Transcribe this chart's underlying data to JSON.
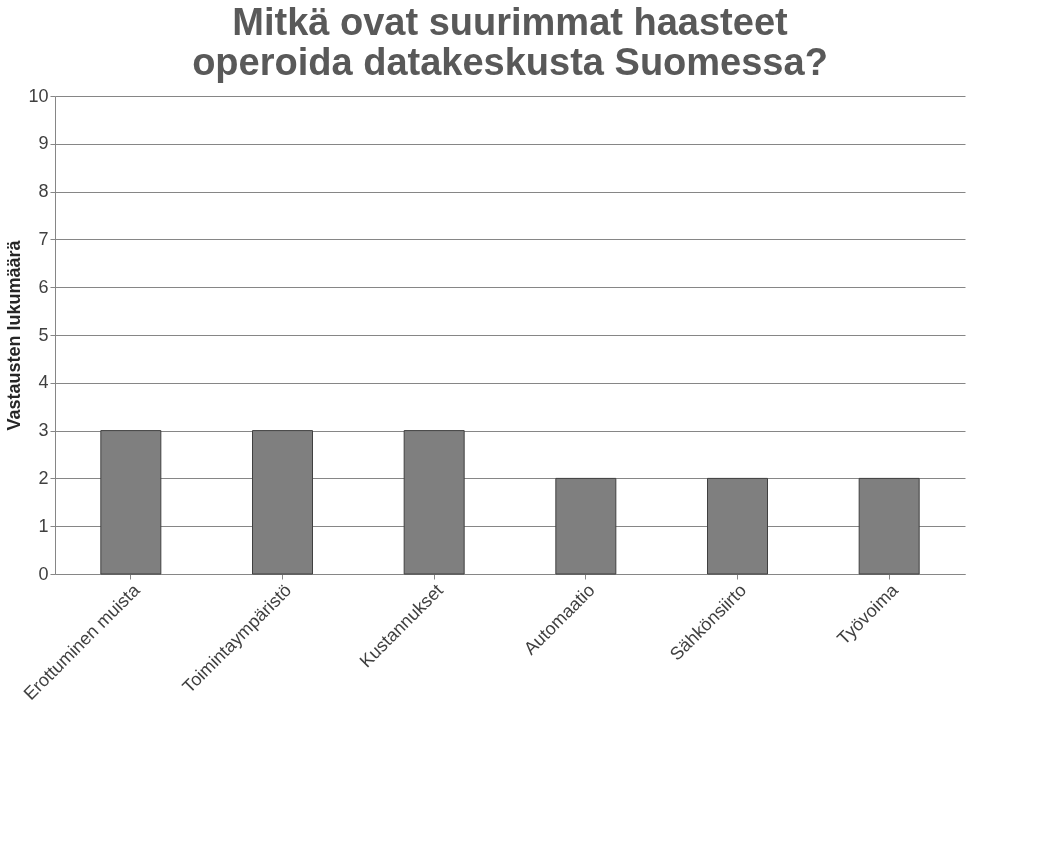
{
  "chart_data": {
    "type": "bar",
    "title": [
      "Mitkä ovat suurimmat haasteet",
      "operoida datakeskusta Suomessa?"
    ],
    "ylabel": "Vastausten lukumäärä",
    "categories": [
      "Erottuminen muista",
      "Toimintaympäristö",
      "Kustannukset",
      "Automaatio",
      "Sähkönsiirto",
      "Työvoima"
    ],
    "values": [
      3,
      3,
      3,
      2,
      2,
      2
    ],
    "color": "#7f7f7f",
    "ylim": [
      0,
      10
    ],
    "yticks": [
      0,
      1,
      2,
      3,
      4,
      5,
      6,
      7,
      8,
      9,
      10
    ],
    "grid": "y"
  }
}
